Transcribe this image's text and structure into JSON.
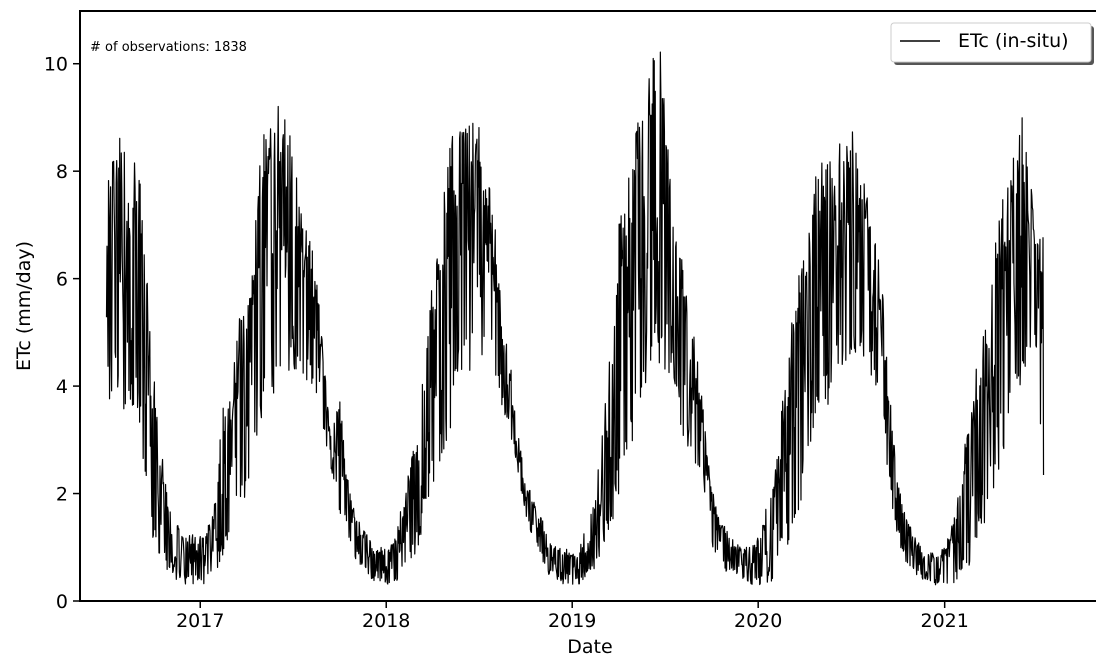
{
  "chart_data": {
    "type": "line",
    "title": "",
    "xlabel": "Date",
    "ylabel": "ETc (mm/day)",
    "annotation": "# of observations: 1838",
    "legend": {
      "placement": "top-right",
      "entries": [
        "ETc (in-situ)"
      ]
    },
    "grid": false,
    "xlim": [
      "2016-05-10",
      "2021-10-25"
    ],
    "ylim": [
      0,
      11
    ],
    "x_ticks": [
      "2017-01-01",
      "2018-01-01",
      "2019-01-01",
      "2020-01-01",
      "2021-01-01"
    ],
    "x_tick_labels": [
      "2017",
      "2018",
      "2019",
      "2020",
      "2021"
    ],
    "y_ticks": [
      0,
      2,
      4,
      6,
      8,
      10
    ],
    "y_tick_labels": [
      "0",
      "2",
      "4",
      "6",
      "8",
      "10"
    ],
    "colors": {
      "series": "#000000"
    },
    "series": [
      {
        "name": "ETc (in-situ)",
        "x": [
          "2016-07-01",
          "2016-07-15",
          "2016-08-01",
          "2016-08-15",
          "2016-09-01",
          "2016-09-15",
          "2016-10-01",
          "2016-10-15",
          "2016-11-01",
          "2016-11-15",
          "2016-12-01",
          "2016-12-15",
          "2017-01-01",
          "2017-01-15",
          "2017-02-01",
          "2017-02-15",
          "2017-03-01",
          "2017-03-15",
          "2017-04-01",
          "2017-04-15",
          "2017-05-01",
          "2017-05-15",
          "2017-06-01",
          "2017-06-15",
          "2017-07-01",
          "2017-07-15",
          "2017-08-01",
          "2017-08-15",
          "2017-09-01",
          "2017-09-15",
          "2017-10-01",
          "2017-10-15",
          "2017-11-01",
          "2017-11-15",
          "2017-12-01",
          "2017-12-15",
          "2018-01-01",
          "2018-01-15",
          "2018-02-01",
          "2018-02-15",
          "2018-03-01",
          "2018-03-15",
          "2018-04-01",
          "2018-04-15",
          "2018-05-01",
          "2018-05-15",
          "2018-06-01",
          "2018-06-15",
          "2018-07-01",
          "2018-07-15",
          "2018-08-01",
          "2018-08-15",
          "2018-09-01",
          "2018-09-15",
          "2018-10-01",
          "2018-10-15",
          "2018-11-01",
          "2018-11-15",
          "2018-12-01",
          "2018-12-15",
          "2019-01-01",
          "2019-01-15",
          "2019-02-01",
          "2019-02-15",
          "2019-03-01",
          "2019-03-15",
          "2019-04-01",
          "2019-04-15",
          "2019-05-01",
          "2019-05-15",
          "2019-06-01",
          "2019-06-15",
          "2019-07-01",
          "2019-07-15",
          "2019-08-01",
          "2019-08-15",
          "2019-09-01",
          "2019-09-15",
          "2019-10-01",
          "2019-10-15",
          "2019-11-01",
          "2019-11-15",
          "2019-12-01",
          "2019-12-15",
          "2020-01-01",
          "2020-01-15",
          "2020-02-01",
          "2020-02-15",
          "2020-03-01",
          "2020-03-15",
          "2020-04-01",
          "2020-04-15",
          "2020-05-01",
          "2020-05-15",
          "2020-06-01",
          "2020-06-15",
          "2020-07-01",
          "2020-07-15",
          "2020-08-01",
          "2020-08-15",
          "2020-09-01",
          "2020-09-15",
          "2020-10-01",
          "2020-10-15",
          "2020-11-01",
          "2020-11-15",
          "2020-12-01",
          "2020-12-15",
          "2021-01-01",
          "2021-01-15",
          "2021-02-01",
          "2021-02-15",
          "2021-03-01",
          "2021-03-15",
          "2021-04-01",
          "2021-04-15",
          "2021-05-01",
          "2021-05-15",
          "2021-06-01",
          "2021-06-15",
          "2021-07-01",
          "2021-07-15"
        ],
        "lo": [
          3.5,
          4.0,
          3.3,
          3.6,
          3.0,
          2.2,
          1.0,
          0.8,
          0.5,
          0.4,
          0.3,
          0.3,
          0.3,
          0.3,
          0.5,
          0.8,
          1.0,
          1.5,
          2.0,
          2.2,
          3.0,
          3.6,
          4.0,
          4.2,
          4.3,
          4.0,
          4.0,
          3.7,
          3.0,
          2.4,
          1.6,
          1.3,
          0.8,
          0.6,
          0.4,
          0.3,
          0.3,
          0.3,
          0.4,
          0.6,
          0.9,
          1.4,
          1.8,
          2.2,
          3.0,
          3.5,
          4.0,
          4.2,
          4.3,
          4.5,
          4.2,
          3.5,
          3.0,
          2.5,
          1.6,
          1.2,
          0.8,
          0.5,
          0.4,
          0.3,
          0.3,
          0.3,
          0.4,
          0.6,
          0.9,
          1.3,
          1.8,
          2.3,
          3.0,
          3.5,
          4.1,
          4.2,
          4.3,
          4.1,
          3.2,
          2.8,
          2.4,
          2.2,
          1.0,
          0.8,
          0.5,
          0.5,
          0.4,
          0.3,
          0.3,
          0.3,
          0.4,
          0.6,
          1.0,
          1.4,
          2.0,
          2.5,
          3.0,
          3.5,
          4.0,
          4.3,
          4.5,
          4.6,
          4.5,
          4.0,
          3.5,
          2.0,
          1.2,
          0.7,
          0.5,
          0.4,
          0.3,
          0.3,
          0.3,
          0.3,
          0.4,
          0.6,
          0.9,
          1.3,
          1.8,
          2.3,
          2.8,
          3.5,
          4.0,
          4.2,
          4.5,
          1.5
        ],
        "hi": [
          7.6,
          8.4,
          9.0,
          7.4,
          8.7,
          6.6,
          4.5,
          2.9,
          1.8,
          1.6,
          1.3,
          1.3,
          1.2,
          1.3,
          2.3,
          3.6,
          3.8,
          5.3,
          5.3,
          6.5,
          8.6,
          9.1,
          9.6,
          9.2,
          8.9,
          7.4,
          6.8,
          6.5,
          4.4,
          3.0,
          3.9,
          2.4,
          1.7,
          1.5,
          1.1,
          1.0,
          1.0,
          1.1,
          1.8,
          2.5,
          3.0,
          4.3,
          5.9,
          6.9,
          8.5,
          8.8,
          9.0,
          9.0,
          8.9,
          8.1,
          7.2,
          5.5,
          4.5,
          3.3,
          2.2,
          2.0,
          1.6,
          1.2,
          1.0,
          1.0,
          0.9,
          1.0,
          1.5,
          2.1,
          3.2,
          4.7,
          7.1,
          7.7,
          9.0,
          9.4,
          10.1,
          11.0,
          9.9,
          7.3,
          6.9,
          5.5,
          4.8,
          3.6,
          2.2,
          1.6,
          1.3,
          1.1,
          1.0,
          1.0,
          1.2,
          1.7,
          2.2,
          3.6,
          4.7,
          6.1,
          6.4,
          7.7,
          8.1,
          8.3,
          8.1,
          9.1,
          9.1,
          8.4,
          7.8,
          7.0,
          5.8,
          4.0,
          2.2,
          1.7,
          1.3,
          1.0,
          0.9,
          0.9,
          1.0,
          1.4,
          2.3,
          3.3,
          4.4,
          4.8,
          5.6,
          7.6,
          7.8,
          8.4,
          9.1,
          8.0,
          7.2,
          6.8
        ]
      }
    ]
  }
}
